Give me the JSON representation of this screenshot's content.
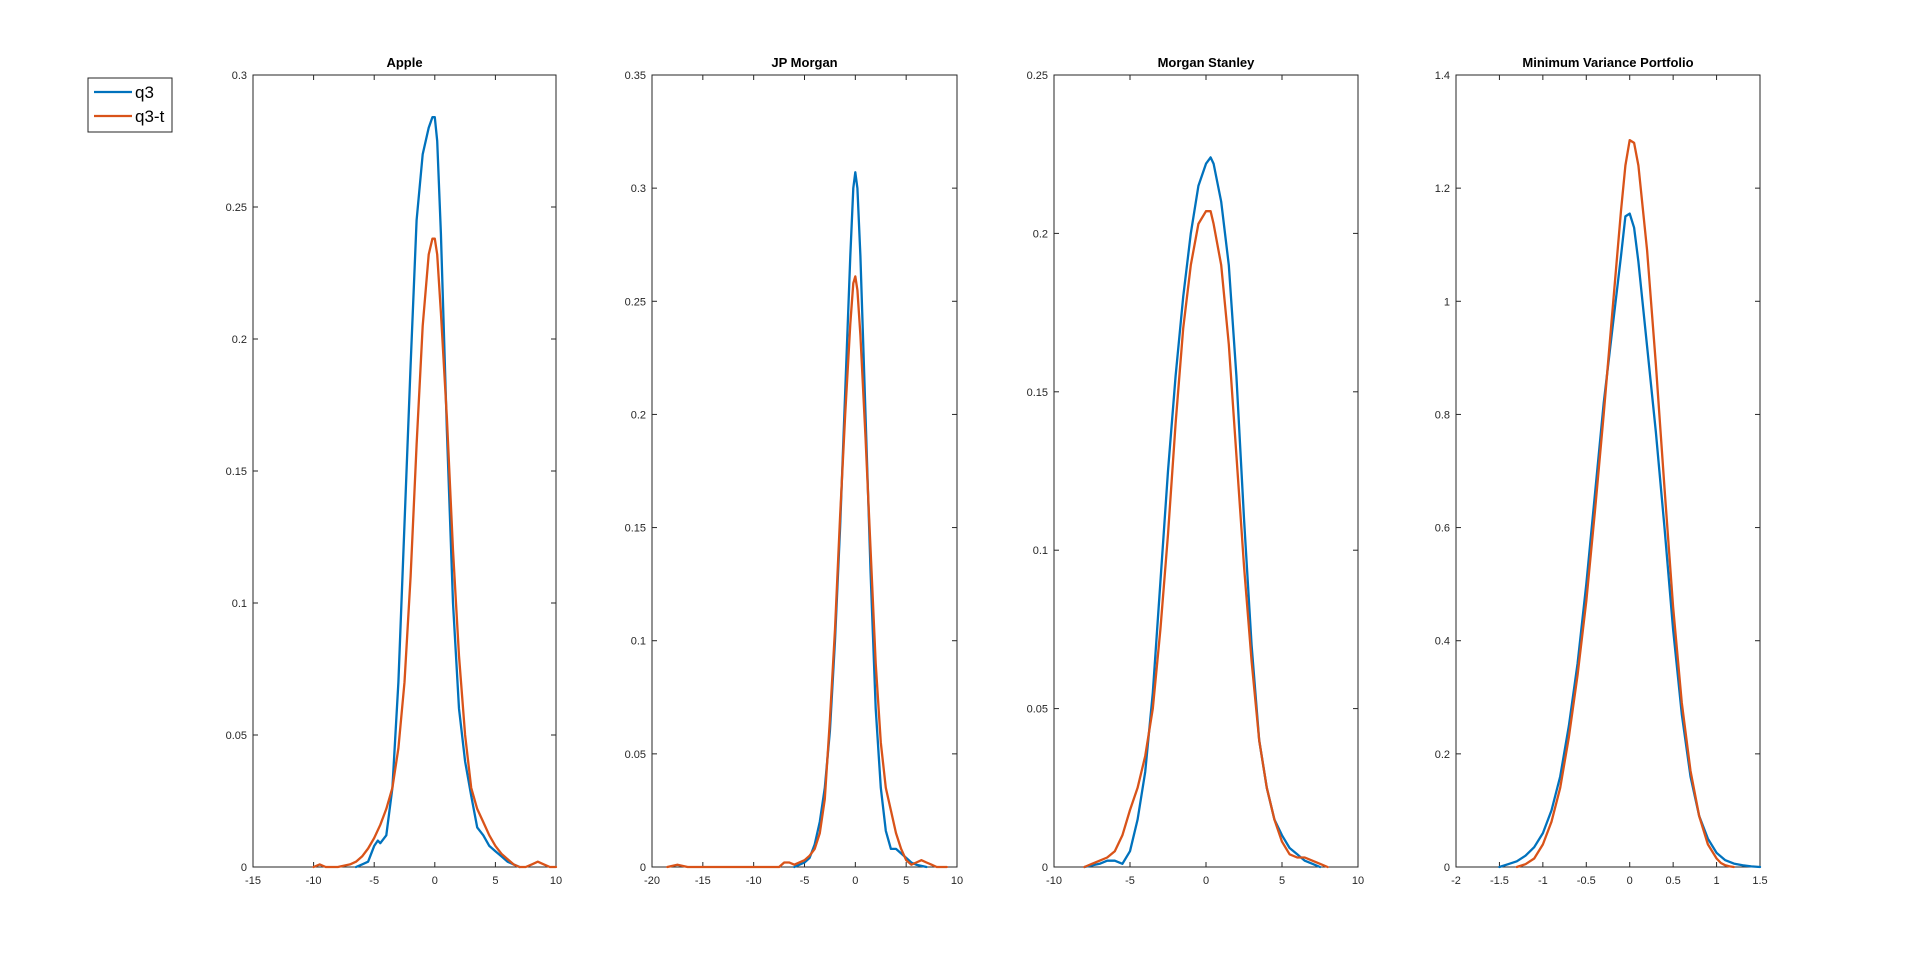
{
  "legend": {
    "placement": "top-left, outside plots",
    "entries": [
      {
        "name": "q3",
        "color": "#0072BD"
      },
      {
        "name": "q3-t",
        "color": "#D95319"
      }
    ]
  },
  "chart_data": [
    {
      "type": "line",
      "title": "Apple",
      "xlim": [
        -15,
        10
      ],
      "ylim": [
        0,
        0.3
      ],
      "xticks": [
        -15,
        -10,
        -5,
        0,
        5,
        10
      ],
      "yticks": [
        0,
        0.05,
        0.1,
        0.15,
        0.2,
        0.25,
        0.3
      ],
      "series": [
        {
          "name": "q3",
          "color": "#0072BD",
          "x": [
            -6.5,
            -6,
            -5.5,
            -5,
            -4.7,
            -4.5,
            -4,
            -3.5,
            -3,
            -2.5,
            -2,
            -1.5,
            -1,
            -0.5,
            -0.2,
            0,
            0.2,
            0.5,
            1,
            1.5,
            2,
            2.5,
            3,
            3.5,
            4,
            4.5,
            5,
            5.5,
            6,
            6.5,
            7
          ],
          "y": [
            0,
            0.001,
            0.002,
            0.008,
            0.01,
            0.009,
            0.012,
            0.03,
            0.07,
            0.13,
            0.19,
            0.245,
            0.27,
            0.28,
            0.284,
            0.284,
            0.275,
            0.24,
            0.165,
            0.1,
            0.06,
            0.04,
            0.027,
            0.015,
            0.012,
            0.008,
            0.006,
            0.004,
            0.002,
            0.001,
            0
          ]
        },
        {
          "name": "q3-t",
          "color": "#D95319",
          "x": [
            -10,
            -9.5,
            -9,
            -8,
            -7,
            -6.5,
            -6,
            -5.5,
            -5,
            -4.5,
            -4,
            -3.5,
            -3,
            -2.5,
            -2,
            -1.5,
            -1,
            -0.5,
            -0.2,
            0,
            0.2,
            0.5,
            1,
            1.5,
            2,
            2.5,
            3,
            3.5,
            4,
            4.5,
            5,
            5.5,
            6,
            6.5,
            7,
            7.5,
            8,
            8.5,
            9,
            9.5,
            10
          ],
          "y": [
            0,
            0.001,
            0,
            0,
            0.001,
            0.002,
            0.004,
            0.007,
            0.011,
            0.016,
            0.022,
            0.03,
            0.045,
            0.07,
            0.11,
            0.16,
            0.205,
            0.232,
            0.238,
            0.238,
            0.232,
            0.21,
            0.17,
            0.12,
            0.08,
            0.05,
            0.03,
            0.022,
            0.017,
            0.012,
            0.008,
            0.005,
            0.003,
            0.001,
            0,
            0,
            0.001,
            0.002,
            0.001,
            0,
            0
          ]
        }
      ]
    },
    {
      "type": "line",
      "title": "JP Morgan",
      "xlim": [
        -20,
        10
      ],
      "ylim": [
        0,
        0.35
      ],
      "xticks": [
        -20,
        -15,
        -10,
        -5,
        0,
        5,
        10
      ],
      "yticks": [
        0,
        0.05,
        0.1,
        0.15,
        0.2,
        0.25,
        0.3,
        0.35
      ],
      "series": [
        {
          "name": "q3",
          "color": "#0072BD",
          "x": [
            -6,
            -5,
            -4.5,
            -4,
            -3.5,
            -3,
            -2.5,
            -2,
            -1.5,
            -1,
            -0.5,
            -0.2,
            0,
            0.2,
            0.5,
            1,
            1.5,
            2,
            2.5,
            3,
            3.5,
            4,
            4.5,
            5,
            5.5,
            6,
            7
          ],
          "y": [
            0,
            0.002,
            0.004,
            0.01,
            0.02,
            0.035,
            0.06,
            0.1,
            0.15,
            0.21,
            0.27,
            0.3,
            0.307,
            0.3,
            0.27,
            0.2,
            0.13,
            0.07,
            0.035,
            0.016,
            0.008,
            0.008,
            0.006,
            0.004,
            0.002,
            0.001,
            0
          ]
        },
        {
          "name": "q3-t",
          "color": "#D95319",
          "x": [
            -18.5,
            -17.5,
            -16.5,
            -15,
            -10,
            -7.5,
            -7,
            -6.5,
            -6,
            -5,
            -4.5,
            -4,
            -3.5,
            -3,
            -2.5,
            -2,
            -1.5,
            -1,
            -0.5,
            -0.2,
            0,
            0.2,
            0.5,
            1,
            1.5,
            2,
            2.5,
            3,
            3.5,
            4,
            4.5,
            5,
            5.5,
            6,
            6.5,
            7,
            7.5,
            8,
            8.5,
            9
          ],
          "y": [
            0,
            0.001,
            0,
            0,
            0,
            0,
            0.002,
            0.002,
            0.001,
            0.003,
            0.005,
            0.008,
            0.015,
            0.03,
            0.065,
            0.105,
            0.155,
            0.2,
            0.24,
            0.258,
            0.261,
            0.255,
            0.235,
            0.19,
            0.14,
            0.09,
            0.055,
            0.035,
            0.025,
            0.015,
            0.008,
            0.003,
            0.001,
            0.002,
            0.003,
            0.002,
            0.001,
            0,
            0,
            0
          ]
        }
      ]
    },
    {
      "type": "line",
      "title": "Morgan Stanley",
      "xlim": [
        -10,
        10
      ],
      "ylim": [
        0,
        0.25
      ],
      "xticks": [
        -10,
        -5,
        0,
        5,
        10
      ],
      "yticks": [
        0,
        0.05,
        0.1,
        0.15,
        0.2,
        0.25
      ],
      "series": [
        {
          "name": "q3",
          "color": "#0072BD",
          "x": [
            -8,
            -7,
            -6.5,
            -6,
            -5.5,
            -5,
            -4.5,
            -4,
            -3.5,
            -3,
            -2.5,
            -2,
            -1.5,
            -1,
            -0.5,
            0,
            0.3,
            0.5,
            1,
            1.5,
            2,
            2.5,
            3,
            3.5,
            4,
            4.5,
            5,
            5.5,
            6,
            6.5,
            7,
            7.5
          ],
          "y": [
            0,
            0.001,
            0.002,
            0.002,
            0.001,
            0.005,
            0.015,
            0.03,
            0.055,
            0.09,
            0.125,
            0.155,
            0.18,
            0.2,
            0.215,
            0.222,
            0.224,
            0.222,
            0.21,
            0.19,
            0.155,
            0.11,
            0.07,
            0.04,
            0.025,
            0.015,
            0.01,
            0.006,
            0.004,
            0.002,
            0.001,
            0
          ]
        },
        {
          "name": "q3-t",
          "color": "#D95319",
          "x": [
            -8,
            -7.5,
            -7,
            -6.5,
            -6,
            -5.5,
            -5,
            -4.5,
            -4,
            -3.5,
            -3,
            -2.5,
            -2,
            -1.5,
            -1,
            -0.5,
            0,
            0.3,
            0.5,
            1,
            1.5,
            2,
            2.5,
            3,
            3.5,
            4,
            4.5,
            5,
            5.5,
            6,
            6.5,
            7,
            7.5,
            8
          ],
          "y": [
            0,
            0.001,
            0.002,
            0.003,
            0.005,
            0.01,
            0.018,
            0.025,
            0.035,
            0.05,
            0.075,
            0.105,
            0.14,
            0.17,
            0.19,
            0.203,
            0.207,
            0.207,
            0.203,
            0.19,
            0.165,
            0.13,
            0.095,
            0.065,
            0.04,
            0.025,
            0.015,
            0.008,
            0.004,
            0.003,
            0.003,
            0.002,
            0.001,
            0
          ]
        }
      ]
    },
    {
      "type": "line",
      "title": "Minimum Variance Portfolio",
      "xlim": [
        -2,
        1.5
      ],
      "ylim": [
        0,
        1.4
      ],
      "xticks": [
        -2,
        -1.5,
        -1,
        -0.5,
        0,
        0.5,
        1,
        1.5
      ],
      "yticks": [
        0,
        0.2,
        0.4,
        0.6,
        0.8,
        1,
        1.2,
        1.4
      ],
      "series": [
        {
          "name": "q3",
          "color": "#0072BD",
          "x": [
            -1.5,
            -1.4,
            -1.3,
            -1.2,
            -1.1,
            -1,
            -0.9,
            -0.8,
            -0.7,
            -0.6,
            -0.5,
            -0.4,
            -0.3,
            -0.2,
            -0.1,
            -0.05,
            0,
            0.05,
            0.1,
            0.2,
            0.3,
            0.4,
            0.5,
            0.6,
            0.7,
            0.8,
            0.9,
            1,
            1.1,
            1.2,
            1.3,
            1.4,
            1.5
          ],
          "y": [
            0,
            0.005,
            0.01,
            0.02,
            0.035,
            0.06,
            0.1,
            0.16,
            0.25,
            0.36,
            0.5,
            0.66,
            0.82,
            0.95,
            1.08,
            1.15,
            1.155,
            1.13,
            1.07,
            0.92,
            0.77,
            0.6,
            0.42,
            0.27,
            0.16,
            0.09,
            0.05,
            0.025,
            0.012,
            0.006,
            0.003,
            0.001,
            0
          ]
        },
        {
          "name": "q3-t",
          "color": "#D95319",
          "x": [
            -1.3,
            -1.2,
            -1.1,
            -1,
            -0.9,
            -0.8,
            -0.7,
            -0.6,
            -0.5,
            -0.4,
            -0.3,
            -0.2,
            -0.1,
            -0.05,
            0,
            0.05,
            0.1,
            0.2,
            0.3,
            0.4,
            0.5,
            0.6,
            0.7,
            0.8,
            0.9,
            1,
            1.05,
            1.1,
            1.15,
            1.2
          ],
          "y": [
            0,
            0.005,
            0.015,
            0.04,
            0.08,
            0.14,
            0.23,
            0.34,
            0.47,
            0.63,
            0.8,
            0.98,
            1.16,
            1.24,
            1.285,
            1.28,
            1.24,
            1.09,
            0.89,
            0.67,
            0.46,
            0.29,
            0.17,
            0.09,
            0.04,
            0.015,
            0.007,
            0.003,
            0.001,
            0
          ]
        }
      ]
    }
  ]
}
